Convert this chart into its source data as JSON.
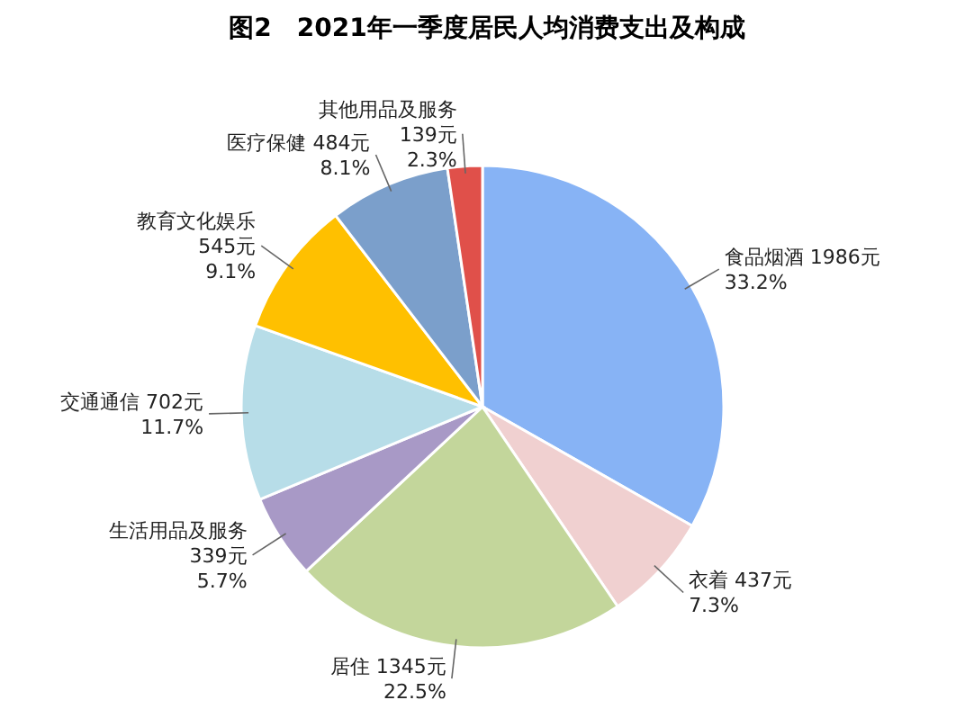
{
  "chart_data": {
    "type": "pie",
    "title": "图2　2021年一季度居民人均消费支出及构成",
    "categories": [
      "食品烟酒",
      "衣着",
      "居住",
      "生活用品及服务",
      "交通通信",
      "教育文化娱乐",
      "医疗保健",
      "其他用品及服务"
    ],
    "values": [
      1986,
      437,
      1345,
      339,
      702,
      545,
      484,
      139
    ],
    "colors": [
      "#87b3f5",
      "#f0d0d0",
      "#c3d69b",
      "#a899c6",
      "#b7dde8",
      "#ffc000",
      "#7b9fcb",
      "#e0504a"
    ],
    "value_labels": [
      "1986元\n33.2%",
      "437元\n7.3%",
      "1345元\n22.5%",
      "339元\n5.7%",
      "702元\n11.7%",
      "545元\n9.1%",
      "484元\n8.1%",
      "139元\n2.3%"
    ]
  }
}
